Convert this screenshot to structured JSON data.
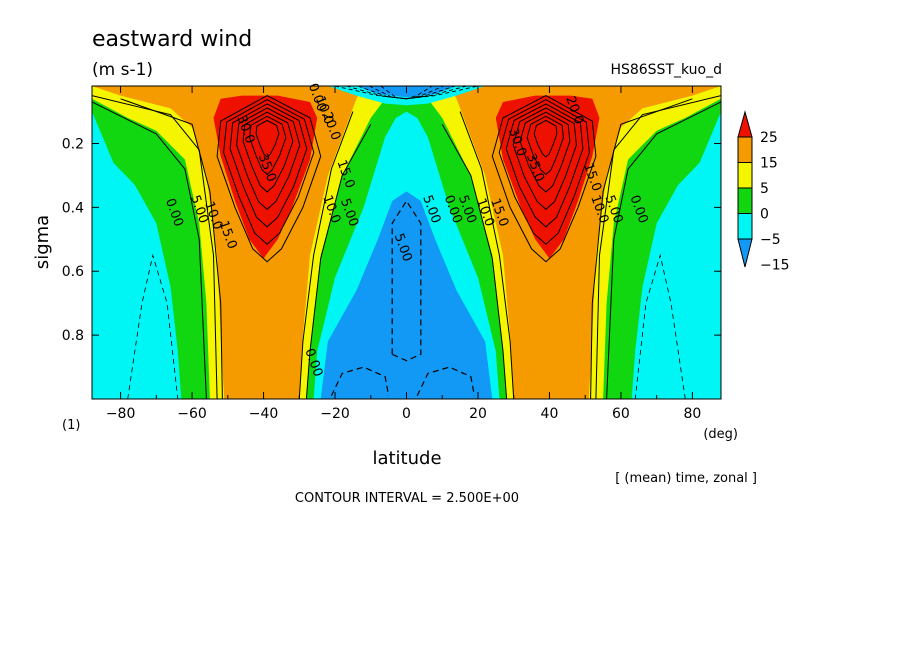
{
  "title": "eastward wind",
  "units": "(m s-1)",
  "run_name": "HS86SST_kuo_d",
  "panel_index": "(1)",
  "xunit": "(deg)",
  "subtitle_note": "[ (mean) time, zonal ]",
  "contour_interval": "CONTOUR INTERVAL = 2.500E+00",
  "colors": {
    "red": "#ee1100",
    "orange": "#f59b00",
    "yellow": "#f5f500",
    "green": "#11d711",
    "cyan": "#00f5f5",
    "blue": "#1199f5"
  },
  "chart_data": {
    "type": "heatmap",
    "title": "eastward wind",
    "xlabel": "latitude",
    "ylabel": "sigma",
    "xlim": [
      -88,
      88
    ],
    "ylim": [
      1.0,
      0.02
    ],
    "x_ticks": [
      -80,
      -60,
      -40,
      -20,
      0,
      20,
      40,
      60,
      80
    ],
    "x_tick_labels": [
      "−80",
      "−60",
      "−40",
      "−20",
      "0",
      "20",
      "40",
      "60",
      "80"
    ],
    "y_ticks": [
      0.2,
      0.4,
      0.6,
      0.8
    ],
    "y_tick_labels": [
      "0.2",
      "0.4",
      "0.6",
      "0.8"
    ],
    "colorbar": {
      "labels": [
        "25",
        "15",
        "5",
        "0",
        "−5",
        "−15"
      ],
      "bands": [
        "red",
        "orange",
        "yellow",
        "green",
        "cyan",
        "blue"
      ]
    },
    "jets": [
      {
        "lat": -39,
        "sigma": 0.15,
        "max": 37.5
      },
      {
        "lat": 39,
        "sigma": 0.15,
        "max": 37.5
      }
    ],
    "contour_labels": [
      {
        "text": "0.00",
        "lat": -66,
        "sigma": 0.42
      },
      {
        "text": "5.00",
        "lat": -59,
        "sigma": 0.41
      },
      {
        "text": "10.0",
        "lat": -55,
        "sigma": 0.43
      },
      {
        "text": "15.0",
        "lat": -51,
        "sigma": 0.49
      },
      {
        "text": "30.0",
        "lat": -46,
        "sigma": 0.16
      },
      {
        "text": "35.0",
        "lat": -40,
        "sigma": 0.28
      },
      {
        "text": "20.0",
        "lat": -22,
        "sigma": 0.15
      },
      {
        "text": "15.0",
        "lat": -18,
        "sigma": 0.3
      },
      {
        "text": "10.0",
        "lat": -22,
        "sigma": 0.41
      },
      {
        "text": "5.00",
        "lat": -17,
        "sigma": 0.42
      },
      {
        "text": "0.00",
        "lat": -27,
        "sigma": 0.89
      },
      {
        "text": "5.00",
        "lat": -2,
        "sigma": 0.53
      },
      {
        "text": "5.00",
        "lat": 6,
        "sigma": 0.41
      },
      {
        "text": "0.00",
        "lat": 12,
        "sigma": 0.41
      },
      {
        "text": "5.00",
        "lat": 16,
        "sigma": 0.41
      },
      {
        "text": "10.0",
        "lat": 21,
        "sigma": 0.42
      },
      {
        "text": "15.0",
        "lat": 25,
        "sigma": 0.42
      },
      {
        "text": "30.0",
        "lat": 30,
        "sigma": 0.2
      },
      {
        "text": "35.0",
        "lat": 35,
        "sigma": 0.28
      },
      {
        "text": "20.0",
        "lat": 46,
        "sigma": 0.1
      },
      {
        "text": "15.0",
        "lat": 51,
        "sigma": 0.31
      },
      {
        "text": "10.0",
        "lat": 53,
        "sigma": 0.41
      },
      {
        "text": "5.00",
        "lat": 57,
        "sigma": 0.41
      },
      {
        "text": "0.00",
        "lat": 64,
        "sigma": 0.41
      },
      {
        "text": "0.00",
        "lat": -26,
        "sigma": 0.06
      },
      {
        "text": "10.0",
        "lat": -24,
        "sigma": 0.1
      }
    ]
  }
}
